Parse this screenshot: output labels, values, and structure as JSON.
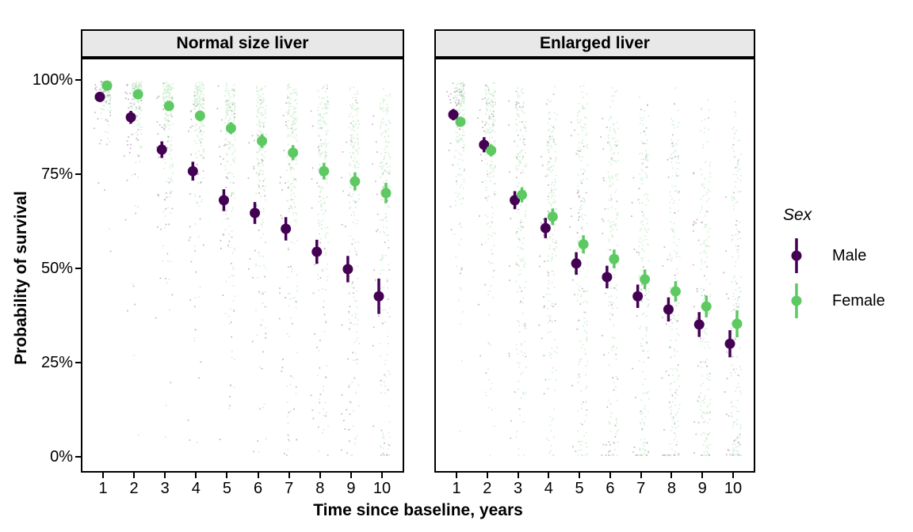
{
  "chart_data": {
    "type": "scatter",
    "title": "",
    "xlabel": "Time since baseline, years",
    "ylabel": "Probability of survival",
    "x": [
      1,
      2,
      3,
      4,
      5,
      6,
      7,
      8,
      9,
      10
    ],
    "ylim": [
      0,
      100
    ],
    "yticks": [
      {
        "value": 0,
        "label": "0%"
      },
      {
        "value": 25,
        "label": "25%"
      },
      {
        "value": 50,
        "label": "50%"
      },
      {
        "value": 75,
        "label": "75%"
      },
      {
        "value": 100,
        "label": "100%"
      }
    ],
    "grid": "off",
    "facets": [
      {
        "label": "Normal size liver",
        "series": [
          {
            "name": "Male",
            "color": "#440154",
            "values": [
              95.5,
              90.1,
              81.5,
              75.8,
              68.1,
              64.7,
              60.5,
              54.4,
              49.8,
              42.6
            ],
            "ci": [
              1.3,
              1.7,
              2.2,
              2.5,
              2.9,
              2.9,
              3.1,
              3.2,
              3.5,
              4.7
            ]
          },
          {
            "name": "Female",
            "color": "#5ec962",
            "values": [
              98.5,
              96.2,
              93.1,
              90.5,
              87.2,
              83.8,
              80.7,
              75.8,
              73.1,
              70.0
            ],
            "ci": [
              0.7,
              0.9,
              1.2,
              1.4,
              1.6,
              1.8,
              2.0,
              2.2,
              2.4,
              2.7
            ]
          }
        ]
      },
      {
        "label": "Enlarged liver",
        "series": [
          {
            "name": "Male",
            "color": "#440154",
            "values": [
              90.8,
              82.8,
              68.1,
              60.7,
              51.3,
              47.7,
              42.6,
              39.1,
              35.1,
              30.0
            ],
            "ci": [
              1.5,
              2.0,
              2.4,
              2.7,
              3.0,
              3.0,
              3.1,
              3.2,
              3.3,
              3.6
            ]
          },
          {
            "name": "Female",
            "color": "#5ec962",
            "values": [
              88.9,
              81.3,
              69.5,
              63.7,
              56.4,
              52.5,
              47.1,
              43.9,
              39.9,
              35.3
            ],
            "ci": [
              1.2,
              1.6,
              2.0,
              2.2,
              2.4,
              2.5,
              2.6,
              2.7,
              2.9,
              3.6
            ]
          }
        ]
      }
    ],
    "legend": {
      "title": "Sex",
      "position": "right",
      "items": [
        {
          "label": "Male",
          "color": "#440154"
        },
        {
          "label": "Female",
          "color": "#5ec962"
        }
      ]
    },
    "jitter_note": "translucent jittered small points show individual predicted survival probabilities behind each mean point-range"
  }
}
